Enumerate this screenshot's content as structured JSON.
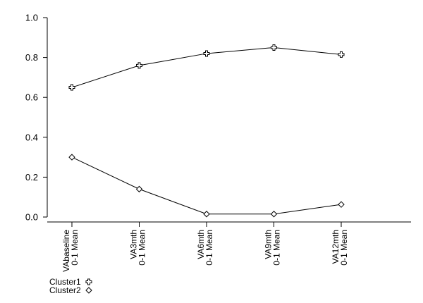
{
  "chart_data": {
    "type": "line",
    "title": "",
    "xlabel": "",
    "ylabel": "",
    "categories": [
      [
        "VAbaseline",
        "0-1 Mean"
      ],
      [
        "VA3mth",
        "0-1 Mean"
      ],
      [
        "VA6mth",
        "0-1 Mean"
      ],
      [
        "VA9mth",
        "0-1 Mean"
      ],
      [
        "VA12mth",
        "0-1 Mean"
      ]
    ],
    "yticks": [
      "0.0",
      "0.2",
      "0.4",
      "0.6",
      "0.8",
      "1.0"
    ],
    "ylim": [
      0,
      1.0
    ],
    "grid": false,
    "legend_position": "bottom-left",
    "series": [
      {
        "name": "Cluster1",
        "marker": "plus-square",
        "values": [
          0.65,
          0.76,
          0.82,
          0.85,
          0.815
        ]
      },
      {
        "name": "Cluster2",
        "marker": "diamond",
        "values": [
          0.3,
          0.14,
          0.015,
          0.015,
          0.063
        ]
      }
    ]
  }
}
